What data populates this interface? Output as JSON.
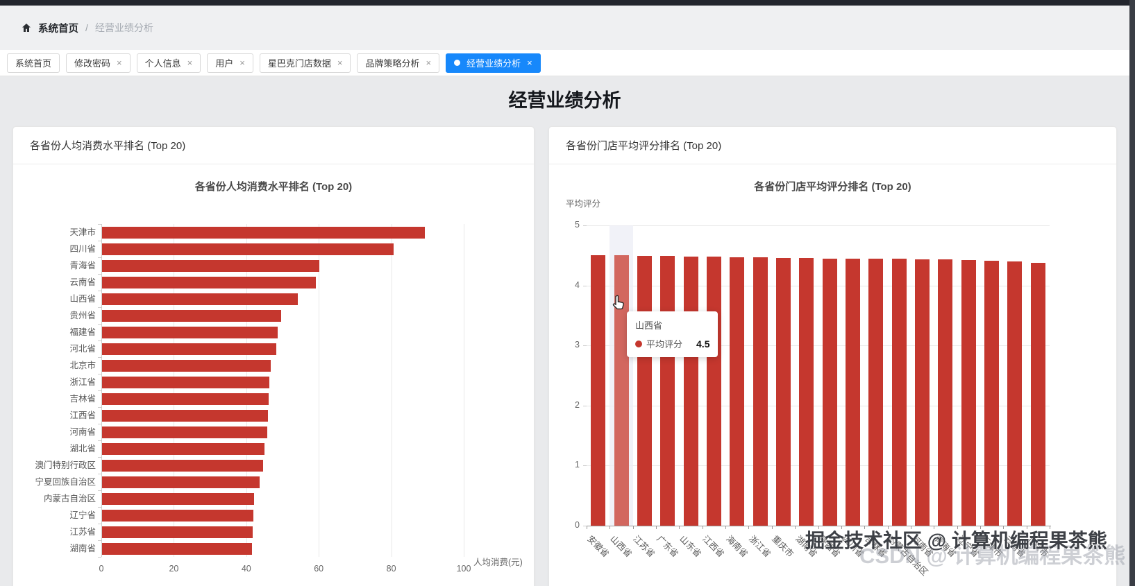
{
  "breadcrumb": {
    "home": "系统首页",
    "separator": "/",
    "current": "经营业绩分析"
  },
  "tabs": [
    {
      "label": "系统首页",
      "closable": false,
      "active": false
    },
    {
      "label": "修改密码",
      "closable": true,
      "active": false
    },
    {
      "label": "个人信息",
      "closable": true,
      "active": false
    },
    {
      "label": "用户",
      "closable": true,
      "active": false
    },
    {
      "label": "星巴克门店数据",
      "closable": true,
      "active": false
    },
    {
      "label": "品牌策略分析",
      "closable": true,
      "active": false
    },
    {
      "label": "经营业绩分析",
      "closable": true,
      "active": true
    }
  ],
  "icons": {
    "close_glyph": "×"
  },
  "page_title": "经营业绩分析",
  "cards": [
    {
      "header": "各省份人均消费水平排名 (Top 20)"
    },
    {
      "header": "各省份门店平均评分排名 (Top 20)"
    }
  ],
  "chart_data": [
    {
      "type": "bar",
      "orientation": "horizontal",
      "title": "各省份人均消费水平排名 (Top 20)",
      "xlabel": "人均消费(元)",
      "xlim": [
        0,
        100
      ],
      "xticks": [
        0,
        20,
        40,
        60,
        80,
        100
      ],
      "grid": true,
      "categories": [
        "天津市",
        "四川省",
        "青海省",
        "云南省",
        "山西省",
        "贵州省",
        "福建省",
        "河北省",
        "北京市",
        "浙江省",
        "吉林省",
        "江西省",
        "河南省",
        "湖北省",
        "澳门特别行政区",
        "宁夏回族自治区",
        "内蒙古自治区",
        "辽宁省",
        "江苏省",
        "湖南省"
      ],
      "values": [
        89,
        80.5,
        60,
        59,
        54,
        49.5,
        48.5,
        48,
        46.5,
        46.2,
        46,
        45.8,
        45.6,
        44.8,
        44.4,
        43.5,
        42,
        41.8,
        41.6,
        41.4
      ]
    },
    {
      "type": "bar",
      "orientation": "vertical",
      "title": "各省份门店平均评分排名 (Top 20)",
      "ylabel": "平均评分",
      "ylim": [
        0,
        5
      ],
      "yticks": [
        0,
        1,
        2,
        3,
        4,
        5
      ],
      "grid": true,
      "categories": [
        "安徽省",
        "山西省",
        "江苏省",
        "广东省",
        "山东省",
        "江西省",
        "海南省",
        "浙江省",
        "重庆市",
        "湖南省",
        "陕西省",
        "四川省",
        "吉林省",
        "内蒙古自治区",
        "河南省",
        "青海省",
        "辽宁省",
        "天津市",
        "云南省",
        "北京市"
      ],
      "values": [
        4.5,
        4.5,
        4.49,
        4.49,
        4.48,
        4.48,
        4.47,
        4.47,
        4.46,
        4.46,
        4.45,
        4.45,
        4.44,
        4.44,
        4.43,
        4.43,
        4.42,
        4.41,
        4.4,
        4.38
      ],
      "hover": {
        "index": 1,
        "label": "山西省",
        "series": "平均评分",
        "value": "4.5"
      }
    }
  ],
  "colors": {
    "accent_blue": "#1788fb",
    "bar_red": "#c5372e",
    "bar_red_hover": "#d2675f",
    "hover_band": "#eceef5"
  },
  "watermark": {
    "line1": "掘金技术社区 @ 计算机编程果茶熊",
    "line2": "CSDN @ 计算机编程果茶熊"
  }
}
